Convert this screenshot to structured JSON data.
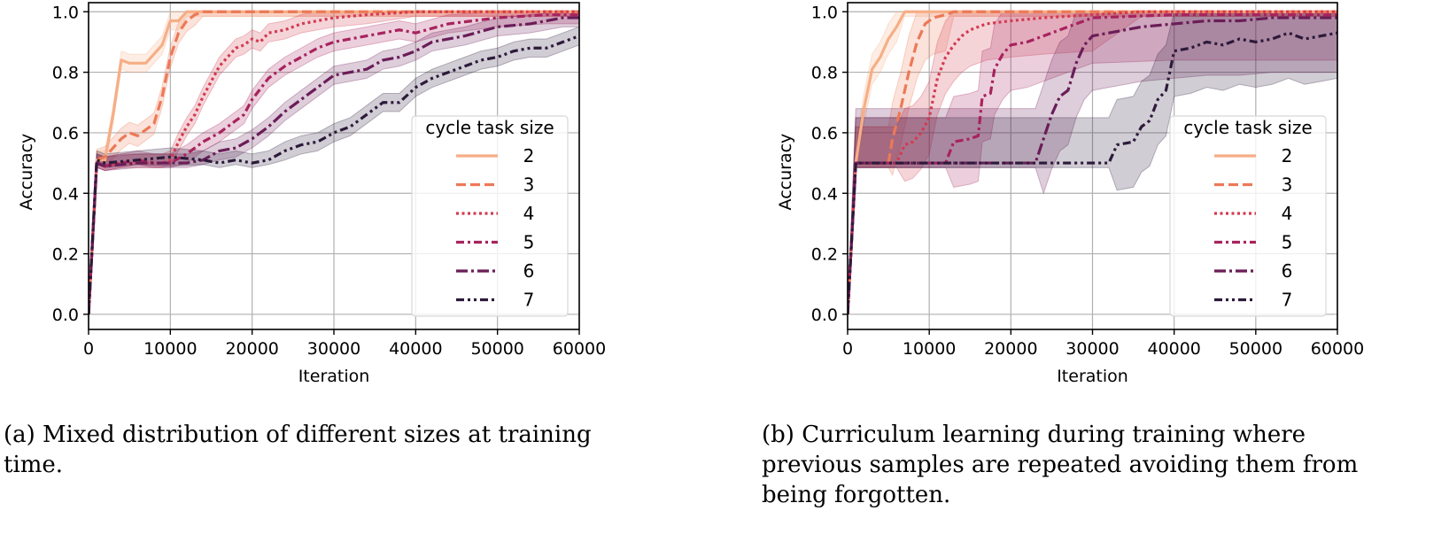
{
  "chart_data": [
    {
      "id": "a",
      "type": "line",
      "title": "",
      "xlabel": "Iteration",
      "ylabel": "Accuracy",
      "xlim": [
        0,
        60000
      ],
      "ylim": [
        -0.05,
        1.03
      ],
      "xticks": [
        0,
        10000,
        20000,
        30000,
        40000,
        50000,
        60000
      ],
      "xtick_labels": [
        "0",
        "10000",
        "20000",
        "30000",
        "40000",
        "50000",
        "60000"
      ],
      "yticks": [
        0.0,
        0.2,
        0.4,
        0.6,
        0.8,
        1.0
      ],
      "ytick_labels": [
        "0.0",
        "0.2",
        "0.4",
        "0.6",
        "0.8",
        "1.0"
      ],
      "grid": true,
      "legend": {
        "title": "cycle task size",
        "placement": "lower-right"
      },
      "caption": "(a) Mixed distribution of different sizes at training time.",
      "series": [
        {
          "name": "2",
          "color": "#f6ae86",
          "dash": "solid",
          "band": 0.03,
          "x": [
            0,
            1000,
            2000,
            3000,
            4000,
            5000,
            6000,
            7000,
            8000,
            9000,
            10000,
            11000,
            12000,
            13000,
            60000
          ],
          "y": [
            0.0,
            0.51,
            0.51,
            0.66,
            0.84,
            0.83,
            0.83,
            0.83,
            0.86,
            0.89,
            0.97,
            0.97,
            1.0,
            1.0,
            1.0
          ]
        },
        {
          "name": "3",
          "color": "#ec7957",
          "dash": "dashed",
          "band": 0.035,
          "x": [
            0,
            1000,
            2000,
            3000,
            4000,
            5000,
            6000,
            7000,
            8000,
            9000,
            10000,
            11000,
            12000,
            13000,
            14000,
            15000,
            60000
          ],
          "y": [
            0.0,
            0.51,
            0.52,
            0.55,
            0.58,
            0.6,
            0.59,
            0.61,
            0.63,
            0.72,
            0.85,
            0.93,
            0.97,
            0.99,
            1.0,
            1.0,
            1.0
          ]
        },
        {
          "name": "4",
          "color": "#d33a4f",
          "dash": "dotted",
          "band": 0.03,
          "x": [
            0,
            1000,
            2000,
            4000,
            6000,
            8000,
            9000,
            10000,
            11000,
            12000,
            13000,
            14000,
            15000,
            16000,
            17000,
            18000,
            19000,
            20000,
            21000,
            22000,
            24000,
            26000,
            28000,
            30000,
            34000,
            40000,
            60000
          ],
          "y": [
            0.0,
            0.5,
            0.49,
            0.5,
            0.5,
            0.5,
            0.5,
            0.51,
            0.57,
            0.62,
            0.66,
            0.72,
            0.77,
            0.82,
            0.85,
            0.88,
            0.89,
            0.91,
            0.9,
            0.93,
            0.94,
            0.96,
            0.97,
            0.98,
            0.99,
            1.0,
            1.0
          ]
        },
        {
          "name": "5",
          "color": "#a7235e",
          "dash": "dashdot-long",
          "band": 0.03,
          "x": [
            0,
            1000,
            2000,
            4000,
            6000,
            8000,
            10000,
            12000,
            14000,
            16000,
            18000,
            19000,
            20000,
            22000,
            24000,
            26000,
            28000,
            30000,
            32000,
            34000,
            36000,
            38000,
            40000,
            44000,
            50000,
            56000,
            60000
          ],
          "y": [
            0.0,
            0.5,
            0.49,
            0.5,
            0.51,
            0.5,
            0.5,
            0.53,
            0.57,
            0.6,
            0.64,
            0.66,
            0.71,
            0.78,
            0.82,
            0.85,
            0.88,
            0.9,
            0.91,
            0.92,
            0.93,
            0.94,
            0.93,
            0.96,
            0.98,
            0.99,
            0.99
          ]
        },
        {
          "name": "6",
          "color": "#6a1d58",
          "dash": "dashdot",
          "band": 0.03,
          "x": [
            0,
            1000,
            2000,
            6000,
            10000,
            12000,
            14000,
            16000,
            18000,
            20000,
            22000,
            24000,
            26000,
            28000,
            30000,
            32000,
            34000,
            36000,
            38000,
            40000,
            42000,
            46000,
            50000,
            54000,
            58000,
            60000
          ],
          "y": [
            0.0,
            0.5,
            0.49,
            0.5,
            0.5,
            0.5,
            0.51,
            0.54,
            0.55,
            0.58,
            0.62,
            0.67,
            0.71,
            0.75,
            0.79,
            0.8,
            0.81,
            0.84,
            0.85,
            0.87,
            0.9,
            0.92,
            0.95,
            0.96,
            0.98,
            0.98
          ]
        },
        {
          "name": "7",
          "color": "#2c1a3b",
          "dash": "dashdotdot",
          "band": 0.03,
          "x": [
            0,
            1000,
            2000,
            6000,
            10000,
            14000,
            16000,
            18000,
            20000,
            22000,
            24000,
            26000,
            28000,
            30000,
            32000,
            34000,
            36000,
            38000,
            40000,
            42000,
            44000,
            46000,
            48000,
            50000,
            52000,
            54000,
            56000,
            58000,
            60000
          ],
          "y": [
            0.0,
            0.51,
            0.5,
            0.51,
            0.52,
            0.51,
            0.5,
            0.51,
            0.5,
            0.51,
            0.54,
            0.56,
            0.57,
            0.6,
            0.62,
            0.66,
            0.7,
            0.7,
            0.75,
            0.78,
            0.8,
            0.82,
            0.84,
            0.85,
            0.87,
            0.88,
            0.88,
            0.9,
            0.92
          ]
        }
      ]
    },
    {
      "id": "b",
      "type": "line",
      "title": "",
      "xlabel": "Iteration",
      "ylabel": "Accuracy",
      "xlim": [
        0,
        60000
      ],
      "ylim": [
        -0.05,
        1.03
      ],
      "xticks": [
        0,
        10000,
        20000,
        30000,
        40000,
        50000,
        60000
      ],
      "xtick_labels": [
        "0",
        "10000",
        "20000",
        "30000",
        "40000",
        "50000",
        "60000"
      ],
      "yticks": [
        0.0,
        0.2,
        0.4,
        0.6,
        0.8,
        1.0
      ],
      "ytick_labels": [
        "0.0",
        "0.2",
        "0.4",
        "0.6",
        "0.8",
        "1.0"
      ],
      "grid": true,
      "legend": {
        "title": "cycle task size",
        "placement": "lower-right"
      },
      "caption": "(b) Curriculum learning during training where previous samples are repeated avoiding them from being forgotten.",
      "series": [
        {
          "name": "2",
          "color": "#f6ae86",
          "dash": "solid",
          "band": 0.05,
          "x": [
            0,
            1000,
            2000,
            3000,
            4000,
            5000,
            6000,
            7000,
            60000
          ],
          "y": [
            0.0,
            0.5,
            0.68,
            0.81,
            0.85,
            0.91,
            0.95,
            1.0,
            1.0
          ]
        },
        {
          "name": "3",
          "color": "#ec7957",
          "dash": "dashed",
          "band": 0.12,
          "x": [
            0,
            1000,
            5000,
            5500,
            6500,
            7500,
            8500,
            9500,
            10500,
            12000,
            13000,
            60000
          ],
          "y": [
            0.0,
            0.5,
            0.5,
            0.58,
            0.68,
            0.8,
            0.9,
            0.96,
            0.98,
            0.99,
            1.0,
            1.0
          ]
        },
        {
          "name": "4",
          "color": "#d33a4f",
          "dash": "dotted",
          "band": 0.12,
          "x": [
            0,
            1000,
            6000,
            7000,
            8000,
            9000,
            10000,
            11000,
            12000,
            13000,
            14000,
            15000,
            17000,
            20000,
            24000,
            30000,
            36000,
            60000
          ],
          "y": [
            0.0,
            0.5,
            0.5,
            0.56,
            0.57,
            0.6,
            0.65,
            0.78,
            0.85,
            0.89,
            0.92,
            0.94,
            0.96,
            0.97,
            0.98,
            0.99,
            1.0,
            1.0
          ]
        },
        {
          "name": "5",
          "color": "#a7235e",
          "dash": "dashdot-long",
          "band": 0.15,
          "x": [
            0,
            1000,
            12000,
            13000,
            15000,
            16000,
            16500,
            17500,
            18000,
            19000,
            20000,
            22000,
            24000,
            26000,
            28000,
            30000,
            40000,
            60000
          ],
          "y": [
            0.0,
            0.5,
            0.5,
            0.57,
            0.58,
            0.59,
            0.72,
            0.73,
            0.81,
            0.86,
            0.89,
            0.9,
            0.92,
            0.94,
            0.96,
            0.98,
            0.99,
            0.99
          ]
        },
        {
          "name": "6",
          "color": "#6a1d58",
          "dash": "dashdot",
          "band": 0.18,
          "x": [
            0,
            1000,
            23000,
            24000,
            25000,
            26000,
            27000,
            28000,
            29000,
            30000,
            32000,
            34000,
            36000,
            40000,
            44000,
            48000,
            52000,
            56000,
            60000
          ],
          "y": [
            0.0,
            0.5,
            0.5,
            0.58,
            0.66,
            0.72,
            0.74,
            0.83,
            0.89,
            0.92,
            0.93,
            0.94,
            0.95,
            0.96,
            0.97,
            0.97,
            0.98,
            0.98,
            0.98
          ]
        },
        {
          "name": "7",
          "color": "#2c1a3b",
          "dash": "dashdotdot",
          "band": 0.15,
          "x": [
            0,
            1000,
            32000,
            33000,
            35000,
            36000,
            37000,
            38000,
            39000,
            40000,
            42000,
            44000,
            46000,
            48000,
            50000,
            52000,
            54000,
            56000,
            58000,
            60000
          ],
          "y": [
            0.0,
            0.5,
            0.5,
            0.56,
            0.57,
            0.62,
            0.64,
            0.71,
            0.74,
            0.87,
            0.88,
            0.9,
            0.89,
            0.91,
            0.9,
            0.91,
            0.93,
            0.91,
            0.92,
            0.93
          ]
        }
      ]
    }
  ],
  "captions": {
    "a": "(a) Mixed distribution of different sizes at training time.",
    "b": "(b) Curriculum learning during training where previous samples are repeated avoiding them from being forgotten."
  }
}
